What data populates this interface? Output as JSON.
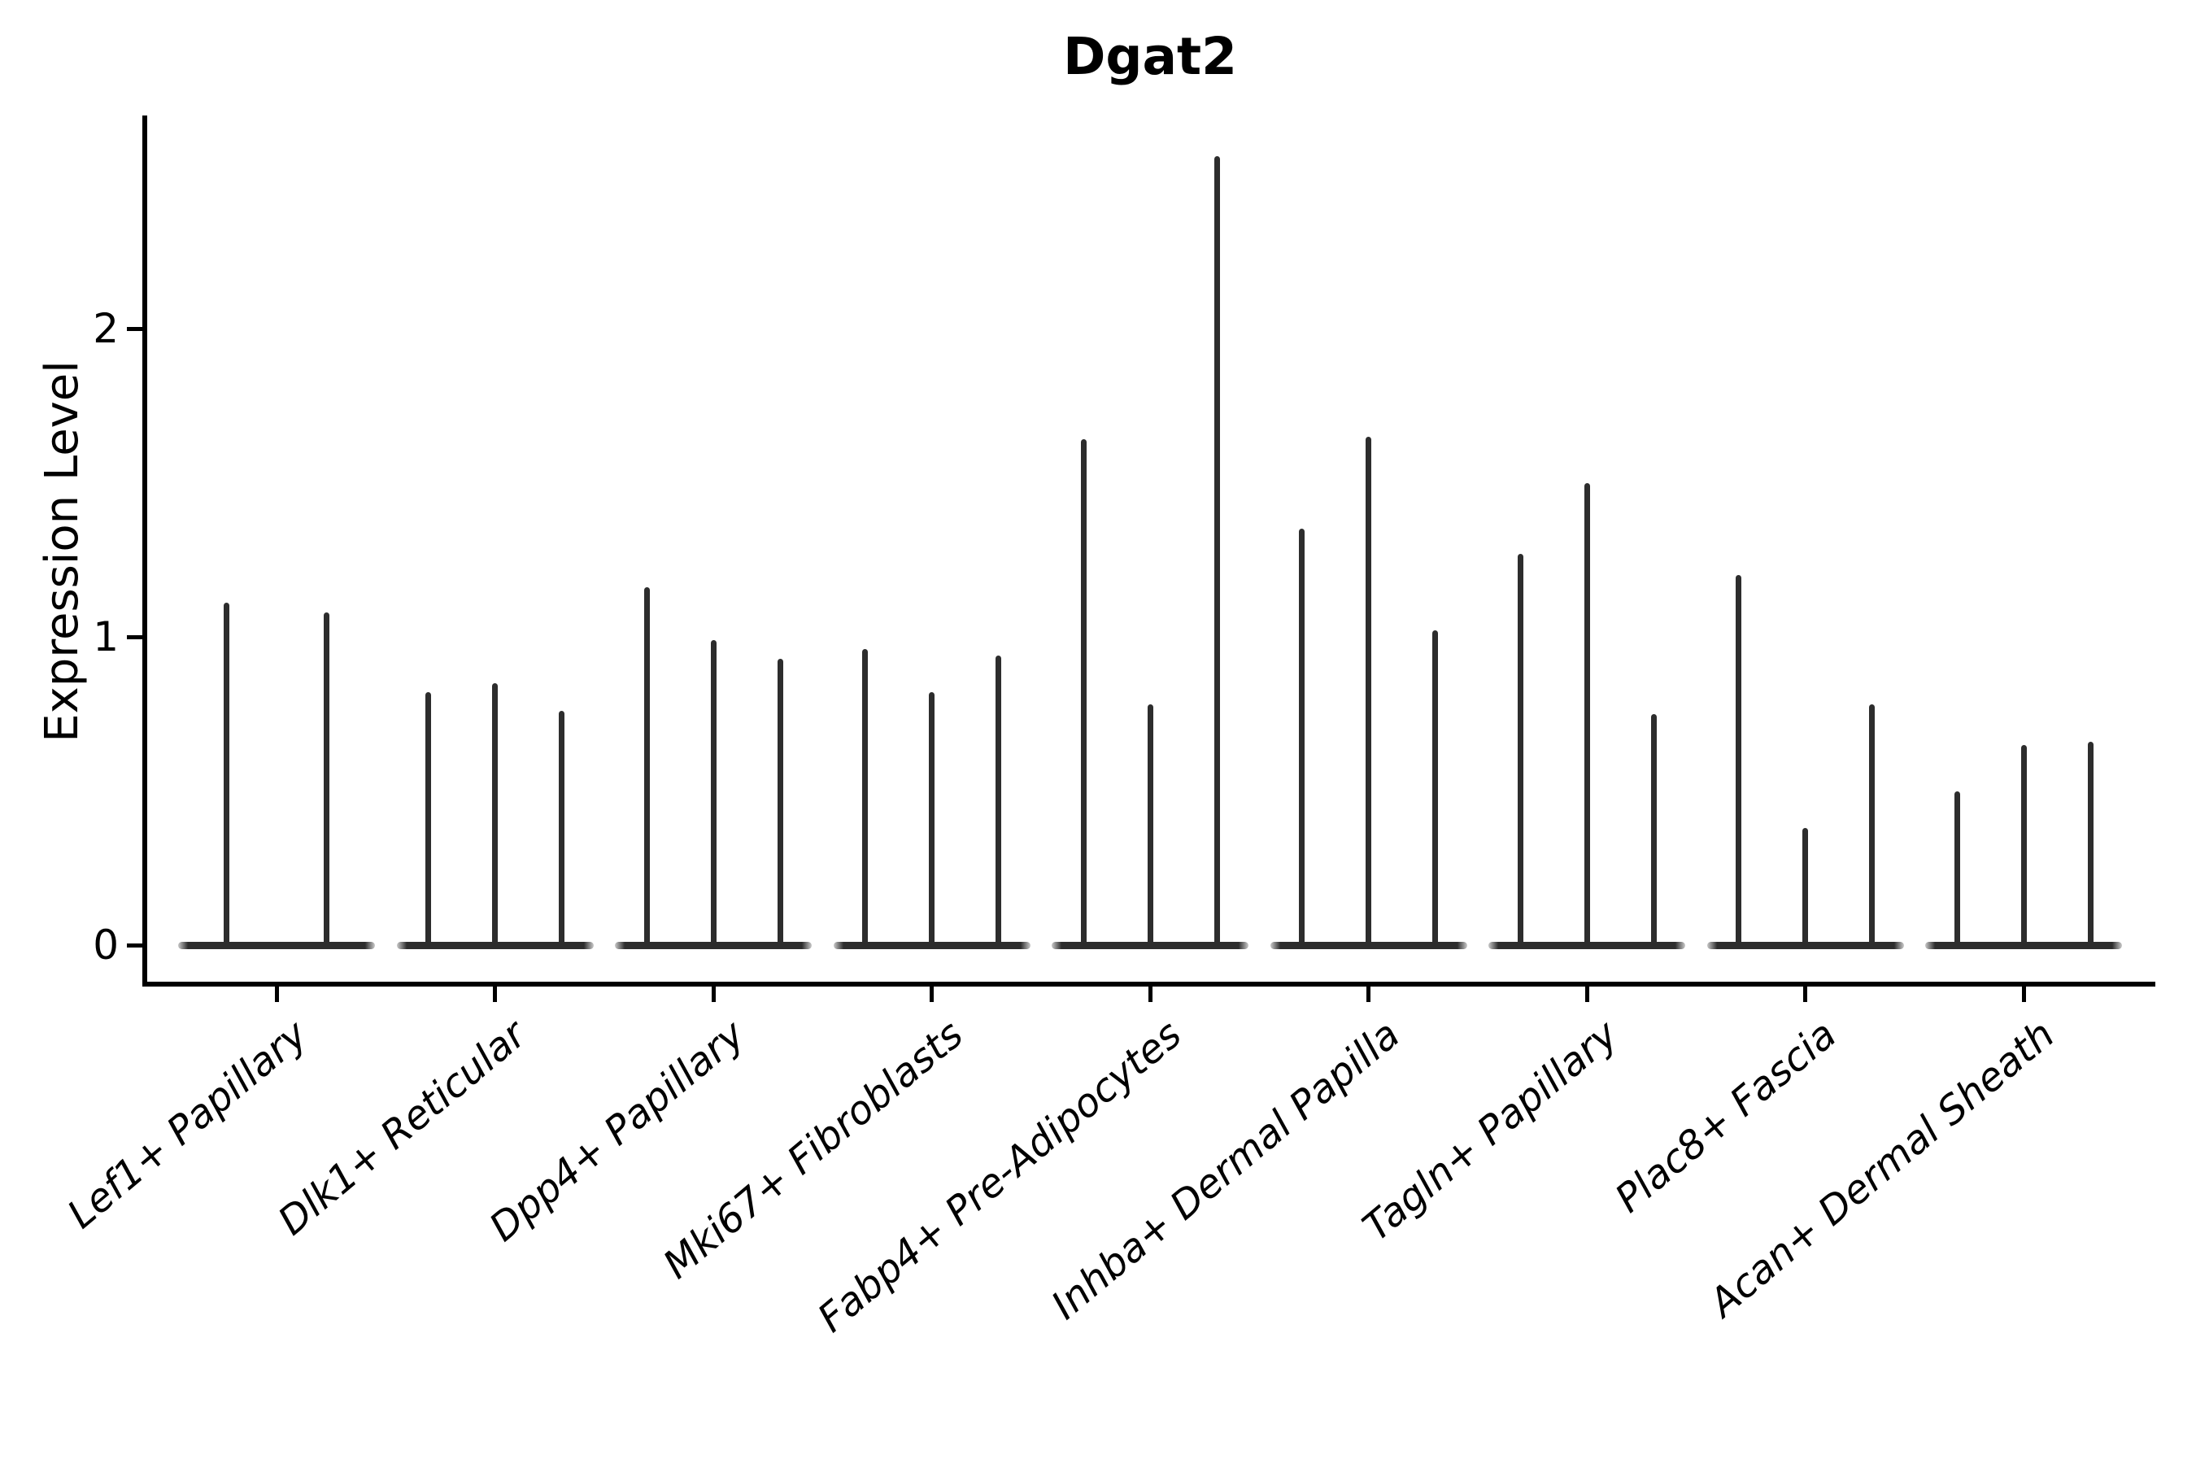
{
  "title": "Dgat2",
  "chart_data": {
    "type": "violin",
    "title": "Dgat2",
    "xlabel": "",
    "ylabel": "Expression Level",
    "yticks": [
      0,
      1,
      2
    ],
    "ylim": [
      -0.13,
      2.69
    ],
    "grid": false,
    "legend": "none",
    "style_note": "needle-thin violins: wide flat base at 0 expression, thin spike up to max expression; first category has 2 violins, others 3",
    "line_color": "#2d2d2d",
    "axis_color": "#000000",
    "categories": [
      "Lef1+ Papillary",
      "Dlk1+ Reticular",
      "Dpp4+ Papillary",
      "Mki67+ Fibroblasts",
      "Fabp4+ Pre-Adipocytes",
      "Inhba+ Dermal Papilla",
      "Tagln+ Papillary",
      "Plac8+ Fascia",
      "Acan+ Dermal Sheath"
    ],
    "series": [
      {
        "name": "Lef1+ Papillary",
        "violin_max_expression": [
          1.11,
          1.08
        ]
      },
      {
        "name": "Dlk1+ Reticular",
        "violin_max_expression": [
          0.82,
          0.85,
          0.76
        ]
      },
      {
        "name": "Dpp4+ Papillary",
        "violin_max_expression": [
          1.16,
          0.99,
          0.93
        ]
      },
      {
        "name": "Mki67+ Fibroblasts",
        "violin_max_expression": [
          0.96,
          0.82,
          0.94
        ]
      },
      {
        "name": "Fabp4+ Pre-Adipocytes",
        "violin_max_expression": [
          1.64,
          0.78,
          2.56
        ]
      },
      {
        "name": "Inhba+ Dermal Papilla",
        "violin_max_expression": [
          1.35,
          1.65,
          1.02
        ]
      },
      {
        "name": "Tagln+ Papillary",
        "violin_max_expression": [
          1.27,
          1.5,
          0.75
        ]
      },
      {
        "name": "Plac8+ Fascia",
        "violin_max_expression": [
          1.2,
          0.38,
          0.78
        ]
      },
      {
        "name": "Acan+ Dermal Sheath",
        "violin_max_expression": [
          0.5,
          0.65,
          0.66
        ]
      }
    ]
  }
}
